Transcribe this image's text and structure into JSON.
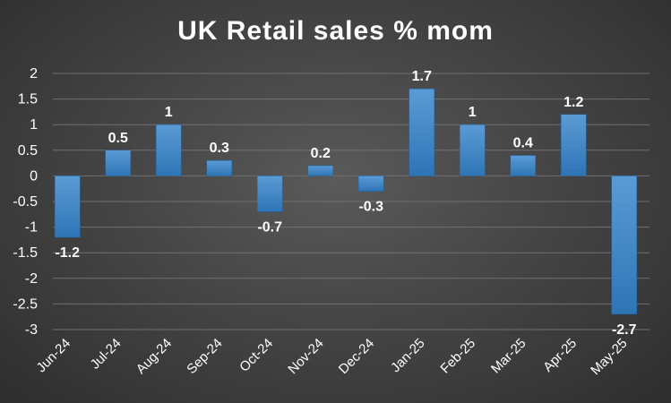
{
  "chart_data": {
    "type": "bar",
    "title": "UK Retail sales % mom",
    "categories": [
      "Jun-24",
      "Jul-24",
      "Aug-24",
      "Sep-24",
      "Oct-24",
      "Nov-24",
      "Dec-24",
      "Jan-25",
      "Feb-25",
      "Mar-25",
      "Apr-25",
      "May-25"
    ],
    "values": [
      -1.2,
      0.5,
      1,
      0.3,
      -0.7,
      0.2,
      -0.3,
      1.7,
      1,
      0.4,
      1.2,
      -2.7
    ],
    "data_labels": [
      "-1.2",
      "0.5",
      "1",
      "0.3",
      "-0.7",
      "0.2",
      "-0.3",
      "1.7",
      "1",
      "0.4",
      "1.2",
      "-2.7"
    ],
    "yticks": [
      2,
      1.5,
      1,
      0.5,
      0,
      -0.5,
      -1,
      -1.5,
      -2,
      -2.5,
      -3
    ],
    "ytick_labels": [
      "2",
      "1.5",
      "1",
      "0.5",
      "0",
      "-0.5",
      "-1",
      "-1.5",
      "-2",
      "-2.5",
      "-3"
    ],
    "ylim": [
      -3,
      2
    ],
    "xlabel": "",
    "ylabel": "",
    "grid": true,
    "legend": "none",
    "colors": {
      "bar_top": "#5b9bd5",
      "bar_bottom": "#2e75b6",
      "gridline": "#707070",
      "text": "#ffffff"
    }
  }
}
